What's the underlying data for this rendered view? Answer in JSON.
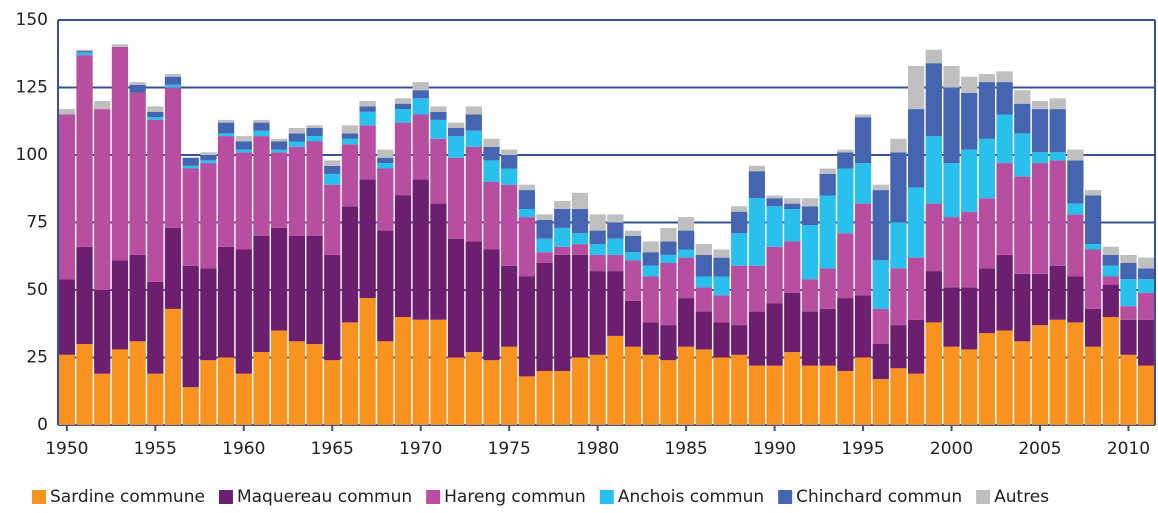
{
  "chart_data": {
    "type": "stacked_bar",
    "categories": [
      "1950",
      null,
      null,
      null,
      null,
      "1955",
      null,
      null,
      null,
      null,
      "1960",
      null,
      null,
      null,
      null,
      "1965",
      null,
      null,
      null,
      null,
      "1970",
      null,
      null,
      null,
      null,
      "1975",
      null,
      null,
      null,
      null,
      "1980",
      null,
      null,
      null,
      null,
      "1985",
      null,
      null,
      null,
      null,
      "1990",
      null,
      null,
      null,
      null,
      "1995",
      null,
      null,
      null,
      null,
      "2000",
      null,
      null,
      null,
      null,
      "2005",
      null,
      null,
      null,
      null,
      "2010",
      null
    ],
    "series": [
      {
        "name": "Sardine commune",
        "color": "#f7931e",
        "values": [
          26,
          30,
          19,
          28,
          31,
          19,
          43,
          14,
          24,
          25,
          19,
          27,
          35,
          31,
          30,
          24,
          38,
          47,
          31,
          40,
          39,
          39,
          25,
          27,
          24,
          29,
          18,
          20,
          20,
          25,
          26,
          33,
          29,
          26,
          24,
          29,
          28,
          25,
          26,
          22,
          22,
          27,
          22,
          22,
          20,
          25,
          17,
          21,
          19,
          38,
          29,
          28,
          34,
          35,
          31,
          37,
          39,
          38,
          29,
          40,
          26,
          22
        ]
      },
      {
        "name": "Maquereau commun",
        "color": "#6b1f6e",
        "values": [
          28,
          36,
          31,
          33,
          32,
          34,
          30,
          45,
          34,
          41,
          46,
          43,
          38,
          39,
          40,
          39,
          43,
          44,
          41,
          45,
          52,
          43,
          44,
          41,
          41,
          30,
          37,
          40,
          43,
          38,
          31,
          24,
          17,
          12,
          13,
          18,
          14,
          13,
          11,
          20,
          23,
          22,
          20,
          21,
          27,
          23,
          13,
          16,
          20,
          19,
          22,
          23,
          24,
          28,
          25,
          19,
          20,
          17,
          14,
          12,
          13,
          17
        ]
      },
      {
        "name": "Hareng commun",
        "color": "#b84ea0",
        "values": [
          61,
          71,
          67,
          79,
          60,
          60,
          52,
          36,
          39,
          41,
          36,
          37,
          28,
          33,
          35,
          26,
          23,
          20,
          23,
          27,
          24,
          24,
          30,
          35,
          25,
          30,
          22,
          4,
          3,
          4,
          6,
          6,
          15,
          17,
          23,
          15,
          9,
          10,
          22,
          17,
          21,
          19,
          12,
          15,
          24,
          34,
          13,
          21,
          23,
          25,
          26,
          28,
          26,
          34,
          36,
          41,
          39,
          23,
          22,
          3,
          5,
          10
        ]
      },
      {
        "name": "Anchois commun",
        "color": "#29c0ee",
        "values": [
          0,
          1,
          0,
          0,
          0,
          1,
          1,
          1,
          1,
          1,
          1,
          2,
          1,
          2,
          2,
          4,
          2,
          5,
          2,
          5,
          6,
          7,
          8,
          6,
          8,
          6,
          3,
          5,
          7,
          4,
          4,
          6,
          3,
          4,
          3,
          3,
          4,
          7,
          12,
          25,
          15,
          12,
          20,
          27,
          24,
          15,
          18,
          17,
          26,
          25,
          20,
          23,
          22,
          18,
          16,
          4,
          3,
          4,
          2,
          4,
          10,
          5
        ]
      },
      {
        "name": "Chinchard commun",
        "color": "#4565b0",
        "values": [
          0,
          0.5,
          0,
          0,
          3,
          2,
          3,
          3,
          2,
          4,
          3,
          3,
          3,
          3,
          3,
          3,
          2,
          2,
          2,
          2,
          3,
          3,
          3,
          6,
          5,
          5,
          7,
          7,
          7,
          9,
          5,
          6,
          6,
          5,
          5,
          7,
          8,
          7,
          8,
          10,
          3,
          2,
          7,
          8,
          6,
          17,
          26,
          26,
          29,
          27,
          28,
          21,
          21,
          12,
          11,
          16,
          16,
          16,
          18,
          4,
          6,
          4
        ]
      },
      {
        "name": "Autres",
        "color": "#bfbfbf",
        "values": [
          2,
          0.5,
          3,
          1,
          1,
          2,
          1,
          0,
          1,
          1,
          2,
          1,
          1,
          2,
          1,
          2,
          3,
          2,
          3,
          2,
          3,
          2,
          2,
          3,
          3,
          2,
          2,
          2,
          3,
          6,
          6,
          3,
          2,
          4,
          5,
          5,
          4,
          3,
          2,
          2,
          1,
          2,
          3,
          2,
          1,
          1,
          2,
          5,
          16,
          5,
          8,
          6,
          3,
          4,
          5,
          3,
          4,
          4,
          2,
          3,
          3,
          4
        ]
      }
    ],
    "ylim": [
      0,
      150
    ],
    "yticks": [
      0,
      25,
      50,
      75,
      100,
      125,
      150
    ],
    "grid": true,
    "legend": "bottom"
  }
}
